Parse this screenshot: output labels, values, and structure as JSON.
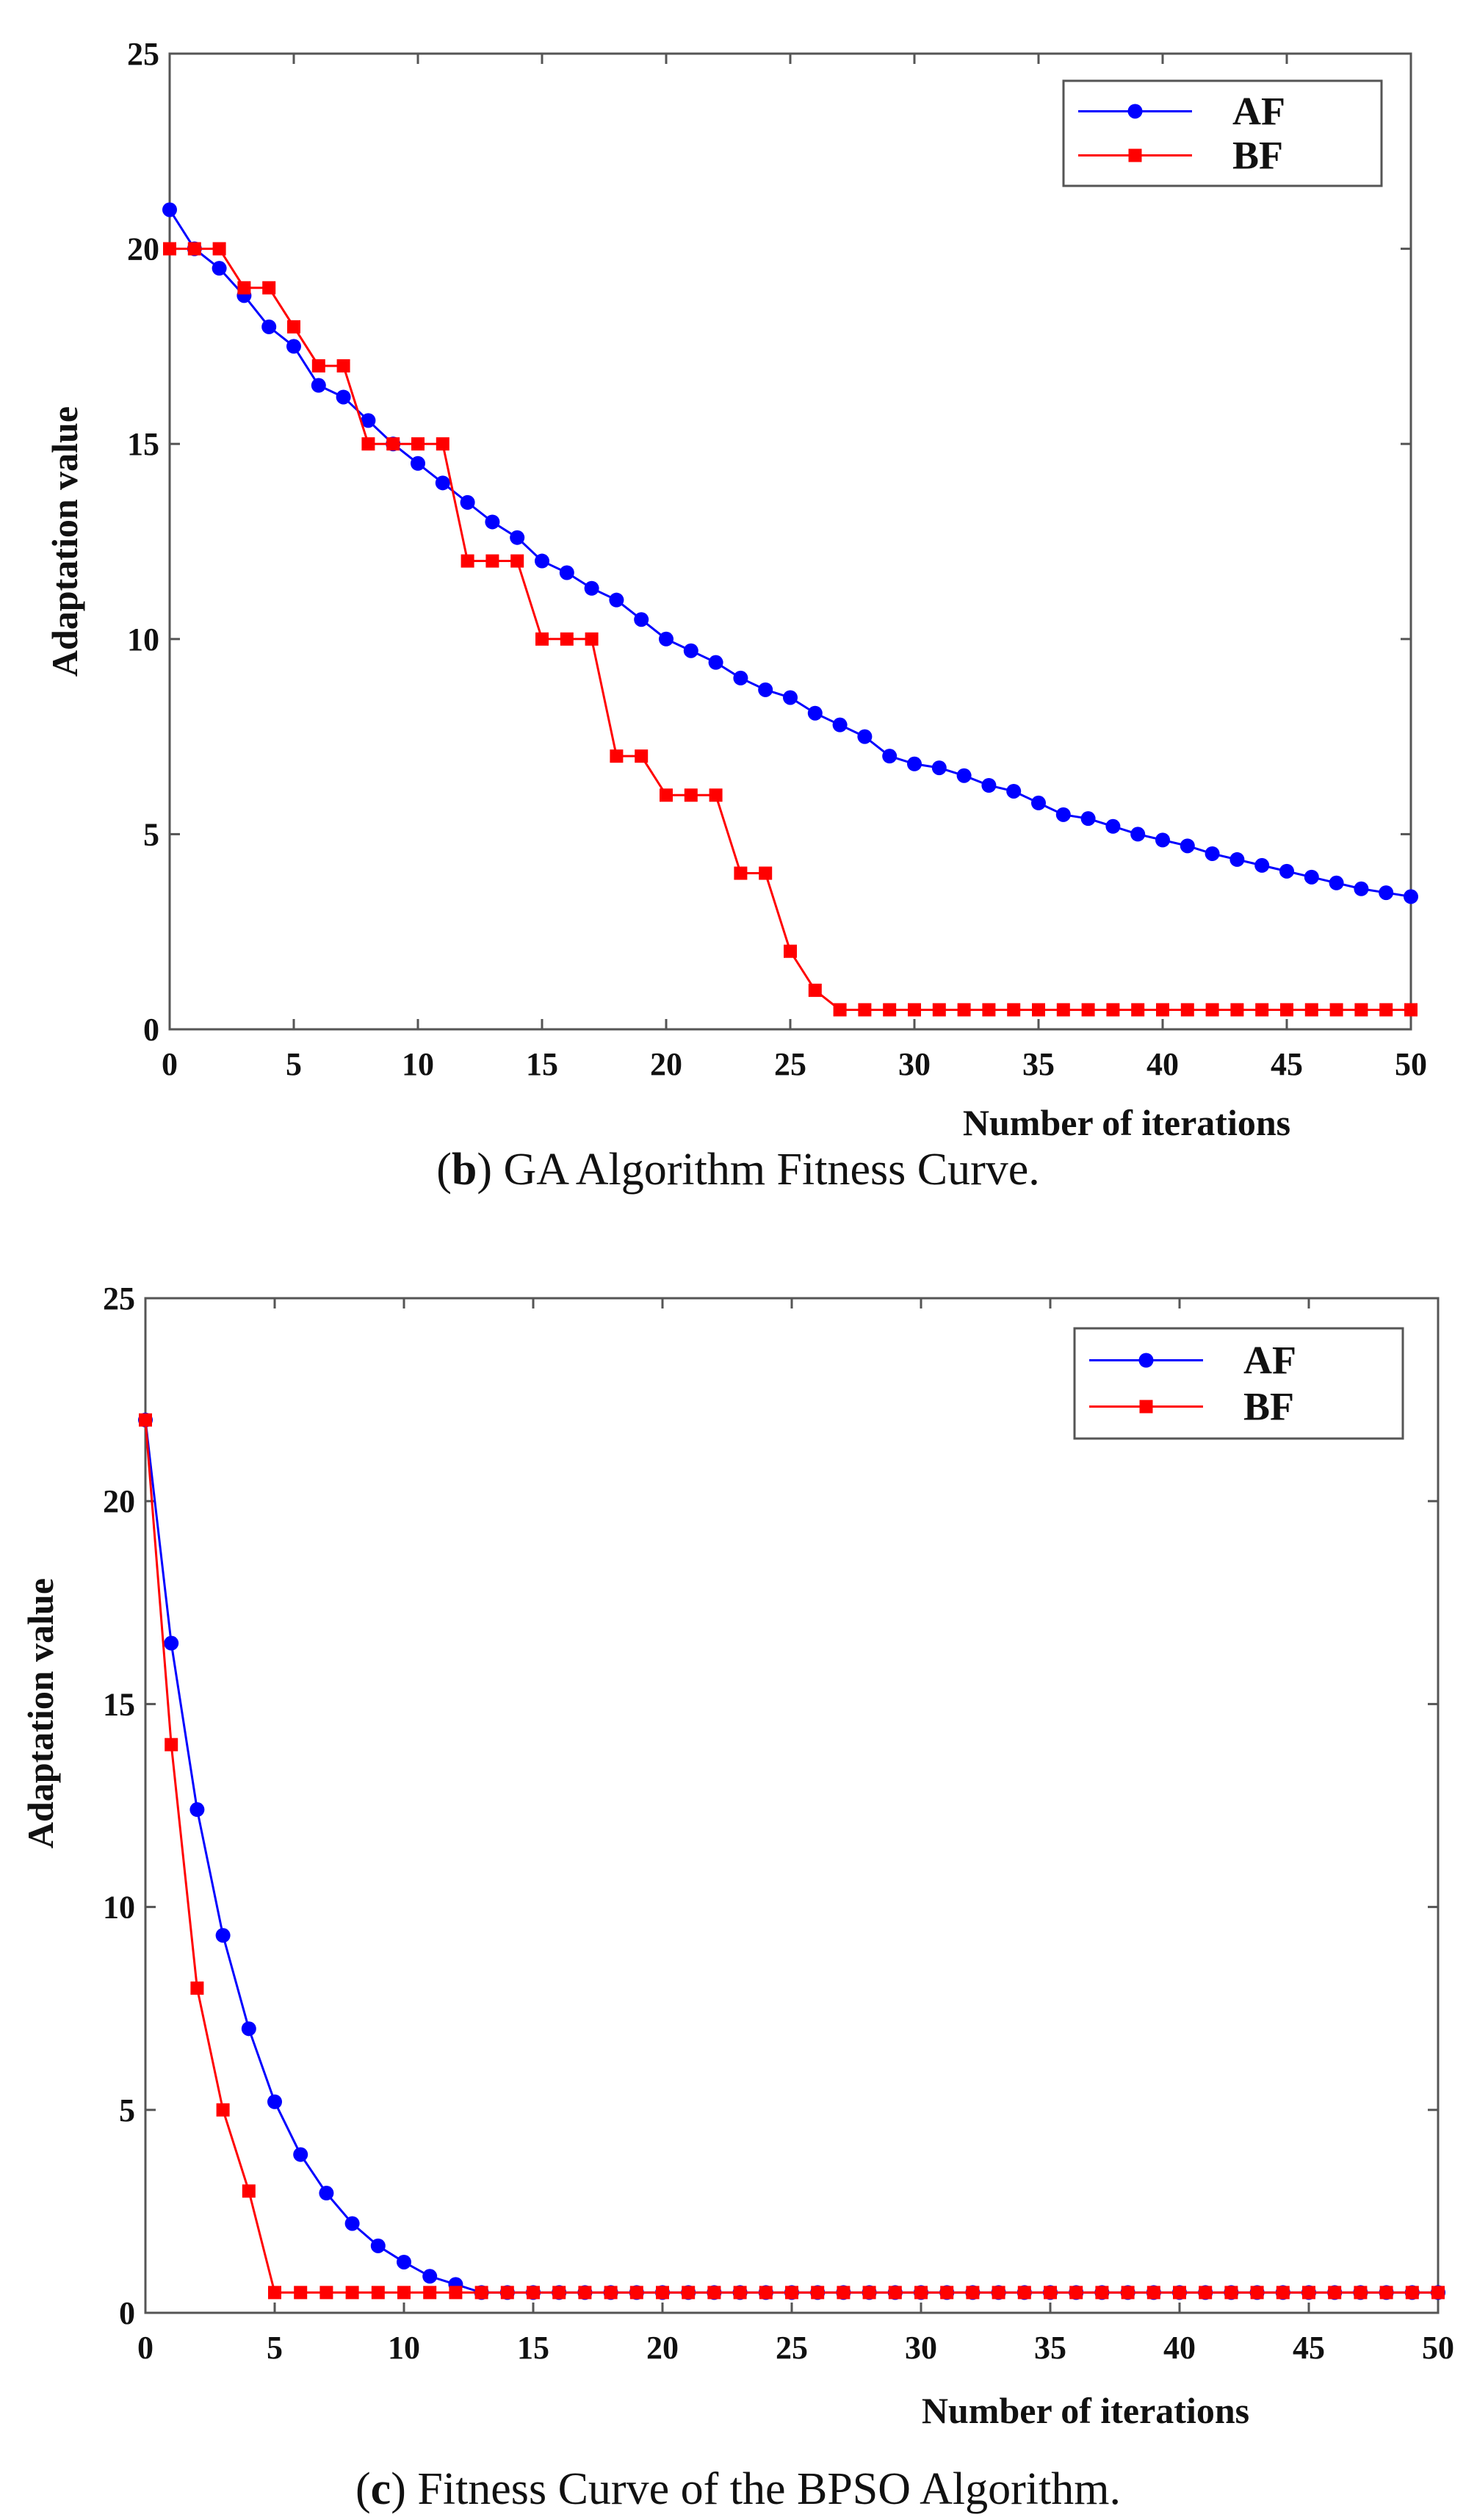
{
  "chart_data": [
    {
      "type": "line",
      "title": "",
      "caption_prefix": "b",
      "caption": "GA Algorithm Fitness Curve.",
      "xlabel": "Number of iterations",
      "ylabel": "Adaptation value",
      "xlim": [
        0,
        50
      ],
      "ylim": [
        0,
        25
      ],
      "xticks": [
        0,
        5,
        10,
        15,
        20,
        25,
        30,
        35,
        40,
        45,
        50
      ],
      "yticks": [
        0,
        5,
        10,
        15,
        20,
        25
      ],
      "grid": false,
      "legend_position": "top-right",
      "x": [
        0,
        1,
        2,
        3,
        4,
        5,
        6,
        7,
        8,
        9,
        10,
        11,
        12,
        13,
        14,
        15,
        16,
        17,
        18,
        19,
        20,
        21,
        22,
        23,
        24,
        25,
        26,
        27,
        28,
        29,
        30,
        31,
        32,
        33,
        34,
        35,
        36,
        37,
        38,
        39,
        40,
        41,
        42,
        43,
        44,
        45,
        46,
        47,
        48,
        49,
        50
      ],
      "series": [
        {
          "name": "AF",
          "color": "#0000ff",
          "marker": "circle",
          "values": [
            21,
            20,
            19.5,
            18.8,
            18,
            17.5,
            16.5,
            16.2,
            15.6,
            15,
            14.5,
            14,
            13.5,
            13,
            12.6,
            12,
            11.7,
            11.3,
            11,
            10.5,
            10,
            9.7,
            9.4,
            9,
            8.7,
            8.5,
            8.1,
            7.8,
            7.5,
            7,
            6.8,
            6.7,
            6.5,
            6.25,
            6.1,
            5.8,
            5.5,
            5.4,
            5.2,
            5,
            4.85,
            4.7,
            4.5,
            4.35,
            4.2,
            4.05,
            3.9,
            3.75,
            3.6,
            3.5,
            3.4
          ]
        },
        {
          "name": "BF",
          "color": "#ff0000",
          "marker": "square",
          "values": [
            20,
            20,
            20,
            19,
            19,
            18,
            17,
            17,
            15,
            15,
            15,
            15,
            12,
            12,
            12,
            10,
            10,
            10,
            7,
            7,
            6,
            6,
            6,
            4,
            4,
            2,
            1,
            0.5,
            0.5,
            0.5,
            0.5,
            0.5,
            0.5,
            0.5,
            0.5,
            0.5,
            0.5,
            0.5,
            0.5,
            0.5,
            0.5,
            0.5,
            0.5,
            0.5,
            0.5,
            0.5,
            0.5,
            0.5,
            0.5,
            0.5,
            0.5
          ]
        }
      ]
    },
    {
      "type": "line",
      "title": "",
      "caption_prefix": "c",
      "caption": "Fitness Curve of the BPSO Algorithm.",
      "xlabel": "Number of iterations",
      "ylabel": "Adaptation value",
      "xlim": [
        0,
        50
      ],
      "ylim": [
        0,
        25
      ],
      "xticks": [
        0,
        5,
        10,
        15,
        20,
        25,
        30,
        35,
        40,
        45,
        50
      ],
      "yticks": [
        0,
        5,
        10,
        15,
        20,
        25
      ],
      "grid": false,
      "legend_position": "top-right",
      "x": [
        0,
        1,
        2,
        3,
        4,
        5,
        6,
        7,
        8,
        9,
        10,
        11,
        12,
        13,
        14,
        15,
        16,
        17,
        18,
        19,
        20,
        21,
        22,
        23,
        24,
        25,
        26,
        27,
        28,
        29,
        30,
        31,
        32,
        33,
        34,
        35,
        36,
        37,
        38,
        39,
        40,
        41,
        42,
        43,
        44,
        45,
        46,
        47,
        48,
        49,
        50
      ],
      "series": [
        {
          "name": "AF",
          "color": "#0000ff",
          "marker": "circle",
          "values": [
            22,
            16.5,
            12.4,
            9.3,
            7,
            5.2,
            3.9,
            2.95,
            2.2,
            1.65,
            1.25,
            0.9,
            0.7,
            0.5,
            0.5,
            0.5,
            0.5,
            0.5,
            0.5,
            0.5,
            0.5,
            0.5,
            0.5,
            0.5,
            0.5,
            0.5,
            0.5,
            0.5,
            0.5,
            0.5,
            0.5,
            0.5,
            0.5,
            0.5,
            0.5,
            0.5,
            0.5,
            0.5,
            0.5,
            0.5,
            0.5,
            0.5,
            0.5,
            0.5,
            0.5,
            0.5,
            0.5,
            0.5,
            0.5,
            0.5,
            0.5
          ]
        },
        {
          "name": "BF",
          "color": "#ff0000",
          "marker": "square",
          "values": [
            22,
            14,
            8,
            5,
            3,
            0.5,
            0.5,
            0.5,
            0.5,
            0.5,
            0.5,
            0.5,
            0.5,
            0.5,
            0.5,
            0.5,
            0.5,
            0.5,
            0.5,
            0.5,
            0.5,
            0.5,
            0.5,
            0.5,
            0.5,
            0.5,
            0.5,
            0.5,
            0.5,
            0.5,
            0.5,
            0.5,
            0.5,
            0.5,
            0.5,
            0.5,
            0.5,
            0.5,
            0.5,
            0.5,
            0.5,
            0.5,
            0.5,
            0.5,
            0.5,
            0.5,
            0.5,
            0.5,
            0.5,
            0.5,
            0.5
          ]
        }
      ]
    }
  ]
}
